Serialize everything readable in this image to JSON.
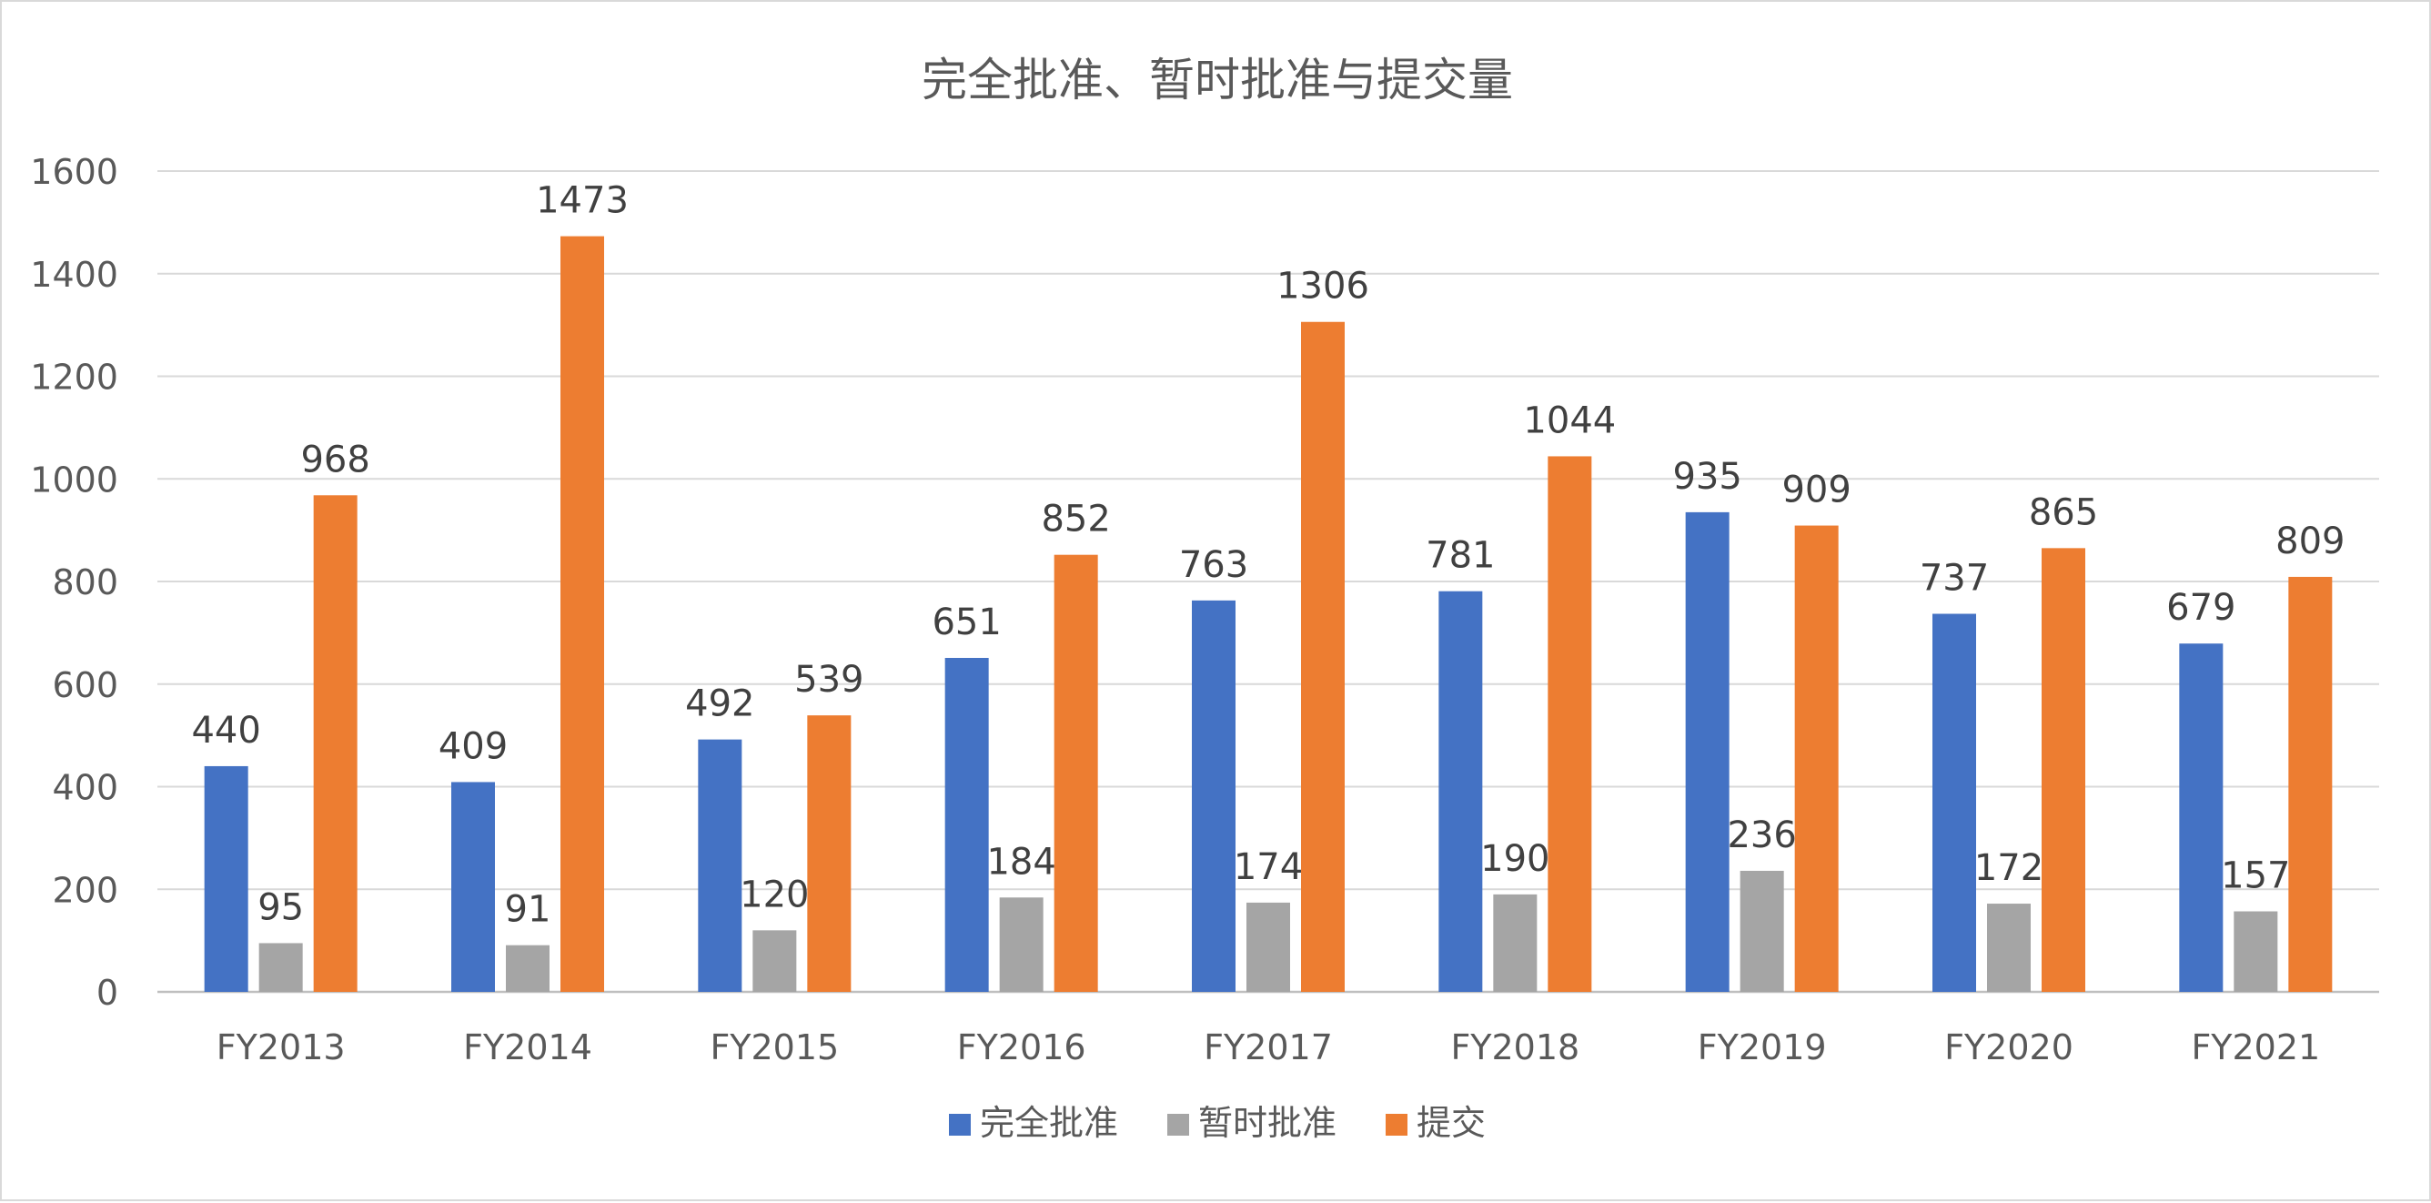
{
  "chart_data": {
    "type": "bar",
    "title": "完全批准、暂时批准与提交量",
    "xlabel": "",
    "ylabel": "",
    "categories": [
      "FY2013",
      "FY2014",
      "FY2015",
      "FY2016",
      "FY2017",
      "FY2018",
      "FY2019",
      "FY2020",
      "FY2021"
    ],
    "series": [
      {
        "name": "完全批准",
        "color": "#4472C4",
        "values": [
          440,
          409,
          492,
          651,
          763,
          781,
          935,
          737,
          679
        ]
      },
      {
        "name": "暂时批准",
        "color": "#A5A5A5",
        "values": [
          95,
          91,
          120,
          184,
          174,
          190,
          236,
          172,
          157
        ]
      },
      {
        "name": "提交",
        "color": "#ED7D31",
        "values": [
          968,
          1473,
          539,
          852,
          1306,
          1044,
          909,
          865,
          809
        ]
      }
    ],
    "ylim": [
      0,
      1600
    ],
    "yticks": [
      "0",
      "200",
      "400",
      "600",
      "800",
      "1000",
      "1200",
      "1400",
      "1600"
    ],
    "grid": true,
    "legend": "bottom",
    "data_labels": true
  }
}
